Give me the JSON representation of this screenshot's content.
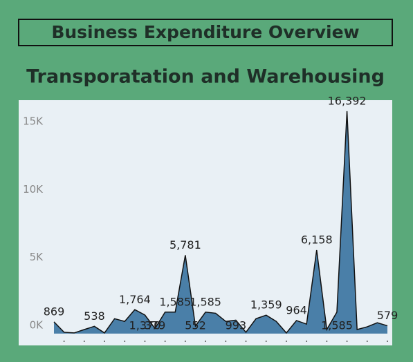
{
  "header": {
    "title": "Business Expenditure Overview"
  },
  "chart_data": {
    "type": "area",
    "title": "Transporatation and Warehousing",
    "categories": [
      null,
      null,
      null,
      null,
      null,
      null,
      null,
      null,
      null,
      null,
      null,
      null,
      null,
      null,
      null,
      null,
      null,
      null,
      null,
      null,
      null,
      null,
      null,
      null,
      null,
      null,
      null,
      null,
      null,
      null,
      null,
      null,
      null,
      null
    ],
    "values": [
      869,
      100,
      50,
      300,
      538,
      50,
      1100,
      900,
      1764,
      1370,
      379,
      1585,
      1585,
      5781,
      552,
      1585,
      1500,
      900,
      993,
      100,
      1100,
      1359,
      900,
      50,
      964,
      700,
      6158,
      300,
      1585,
      16392,
      300,
      500,
      800,
      579
    ],
    "value_labels": [
      "869",
      null,
      null,
      null,
      "538",
      null,
      null,
      null,
      "1,764",
      "1,370",
      "379",
      null,
      "1,585",
      "5,781",
      "552",
      "1,585",
      null,
      null,
      "993",
      null,
      null,
      "1,359",
      null,
      null,
      "964",
      null,
      "6,158",
      null,
      "1,585",
      "16,392",
      null,
      null,
      null,
      "579"
    ],
    "color": "#4a7fa8",
    "ylim": [
      -870,
      17200
    ],
    "yticks": [
      {
        "value": 0,
        "label": "0K"
      },
      {
        "value": 5000,
        "label": "5K"
      },
      {
        "value": 10000,
        "label": "10K"
      },
      {
        "value": 15000,
        "label": "15K"
      }
    ]
  }
}
